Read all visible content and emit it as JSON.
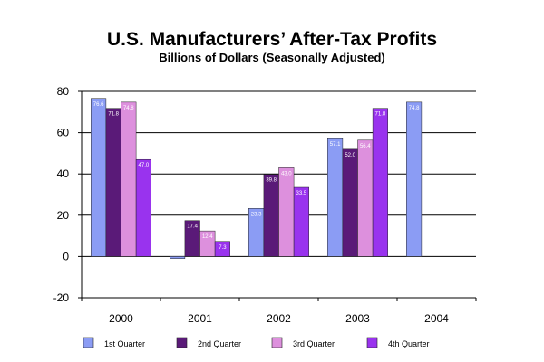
{
  "chart_data": {
    "type": "bar",
    "title": "U.S. Manufacturers’ After-Tax Profits",
    "subtitle": "Billions of Dollars (Seasonally Adjusted)",
    "categories": [
      "2000",
      "2001",
      "2002",
      "2003",
      "2004"
    ],
    "ylim": [
      -20,
      80
    ],
    "yticks": [
      -20,
      0,
      20,
      40,
      60,
      80
    ],
    "ytick_labels": [
      "-20",
      "0",
      "20",
      "40",
      "60",
      "80"
    ],
    "grid": true,
    "legend_position": "bottom",
    "series": [
      {
        "name": "1st Quarter",
        "color": "#8b9cf4",
        "values": [
          76.6,
          -1.0,
          23.3,
          57.1,
          74.8
        ],
        "labels": [
          "76.6",
          "",
          "23.3",
          "57.1",
          "74.8"
        ]
      },
      {
        "name": "2nd Quarter",
        "color": "#5a1a78",
        "values": [
          71.8,
          17.4,
          39.8,
          52.0,
          null
        ],
        "labels": [
          "71.8",
          "17.4",
          "39.8",
          "52.0",
          ""
        ]
      },
      {
        "name": "3rd Quarter",
        "color": "#dd90dd",
        "values": [
          74.8,
          12.4,
          43.0,
          56.4,
          null
        ],
        "labels": [
          "74.8",
          "12.4",
          "43.0",
          "56.4",
          ""
        ]
      },
      {
        "name": "4th Quarter",
        "color": "#9933ee",
        "values": [
          47.0,
          7.3,
          33.5,
          71.8,
          null
        ],
        "labels": [
          "47.0",
          "7.3",
          "33.5",
          "71.8",
          ""
        ]
      }
    ]
  }
}
